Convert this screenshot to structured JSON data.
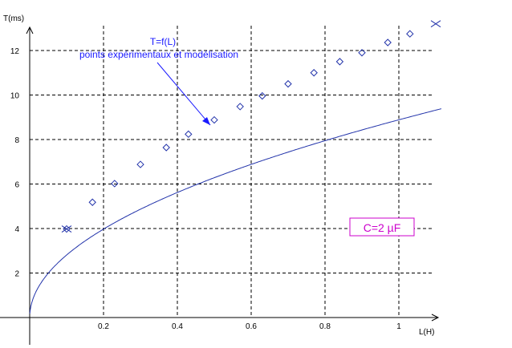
{
  "chart_data": {
    "type": "scatter",
    "xlabel": "L(H)",
    "ylabel": "T(ms)",
    "xlim": [
      0,
      1.1
    ],
    "ylim": [
      0,
      13
    ],
    "xticks": [
      0.2,
      0.4,
      0.6,
      0.8,
      1
    ],
    "yticks": [
      2,
      4,
      6,
      8,
      10,
      12
    ],
    "grid": "dashed",
    "annotation": {
      "line1": "T=f(L)",
      "line2": "points expérimentaux et modélisation"
    },
    "capacitor_label": "C=2 µF",
    "series": [
      {
        "marker": "diamond",
        "x": [
          0.1,
          0.17,
          0.23,
          0.3,
          0.37,
          0.43,
          0.5,
          0.57,
          0.63,
          0.7,
          0.77,
          0.84,
          0.9,
          0.97,
          1.03
        ],
        "y": [
          3.98,
          5.18,
          6.02,
          6.88,
          7.64,
          8.24,
          8.88,
          9.48,
          9.96,
          10.5,
          11.0,
          11.5,
          11.9,
          12.36,
          12.75
        ]
      },
      {
        "marker": "cross",
        "x": [
          0.1,
          1.1
        ],
        "y": [
          3.98,
          13.2
        ]
      }
    ],
    "model": {
      "form": "T = 2π√(LC)",
      "C_uF": 2
    },
    "colors": {
      "curve": "#2233aa",
      "marker": "#2233aa",
      "grid": "#000000",
      "annotation": "#1a1aff",
      "label": "#cc00cc"
    }
  }
}
